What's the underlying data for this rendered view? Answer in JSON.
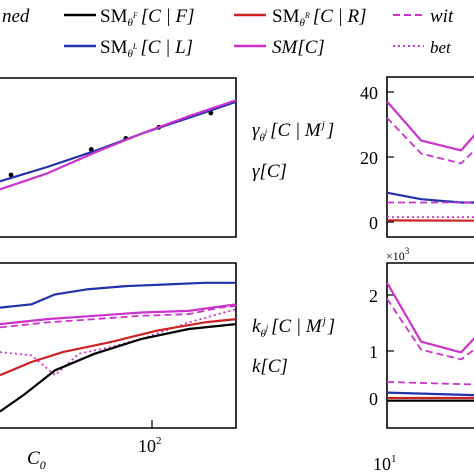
{
  "legend": {
    "items": [
      {
        "id": "tuned",
        "label": "ned",
        "style": "none",
        "color": "#000000"
      },
      {
        "id": "smf",
        "label_main": "SM",
        "label_sub": "θ",
        "label_sup": "F",
        "label_tail": "[C | F]",
        "style": "solid",
        "color": "#000000"
      },
      {
        "id": "smr",
        "label_main": "SM",
        "label_sub": "θ",
        "label_sup": "R",
        "label_tail": "[C | R]",
        "style": "solid",
        "color": "#cc2222"
      },
      {
        "id": "with",
        "label": "wit",
        "style": "dashed",
        "color": "#cc33cc"
      },
      {
        "id": "sml",
        "label_main": "SM",
        "label_sub": "θ",
        "label_sup": "L",
        "label_tail": "[C | L]",
        "style": "solid",
        "color": "#2233aa"
      },
      {
        "id": "smc",
        "label_main": "SM[C]",
        "style": "solid",
        "color": "#cc33cc"
      },
      {
        "id": "bet",
        "label": "bet",
        "style": "dotted",
        "color": "#cc33cc"
      }
    ]
  },
  "middle_labels": {
    "gamma_main": "γ",
    "gamma_sub": "θ",
    "gamma_subsup": "j",
    "gamma_tail": "[C | M",
    "gamma_tail_sup": "j",
    "gamma_close": "]",
    "gamma_plain": "γ[C]",
    "k_main": "k",
    "k_sub": "θ",
    "k_subsup": "j",
    "k_tail": "[C | M",
    "k_tail_sup": "j",
    "k_close": "]",
    "k_plain": "k[C]"
  },
  "right_top": {
    "yticks": [
      "40",
      "20",
      "0"
    ]
  },
  "right_bottom": {
    "multiplier": "×10",
    "multiplier_exp": "3",
    "yticks": [
      "2",
      "1",
      "0"
    ]
  },
  "xaxis": {
    "left_label": "C",
    "left_label_sub": "0",
    "left_tick": "10",
    "left_tick_exp": "2",
    "right_tick": "10",
    "right_tick_exp": "1"
  },
  "colors": {
    "black": "#000000",
    "blue": "#2233aa",
    "red": "#cc2222",
    "magenta": "#cc33cc"
  },
  "chart_data": [
    {
      "id": "left-top",
      "type": "line",
      "note_axes": "visible portion only; x in log10(C0), y in arbitrary units",
      "xlim": [
        1.0,
        2.5
      ],
      "ylim": [
        0,
        10
      ],
      "series": [
        {
          "style": "scatter",
          "color": "#000000",
          "points": [
            [
              1.07,
              3.9
            ],
            [
              1.58,
              5.5
            ],
            [
              1.8,
              6.2
            ],
            [
              2.01,
              6.9
            ],
            [
              2.34,
              7.8
            ]
          ]
        },
        {
          "style": "solid",
          "color": "#2233aa",
          "points": [
            [
              1.0,
              3.5
            ],
            [
              1.3,
              4.4
            ],
            [
              1.6,
              5.4
            ],
            [
              1.9,
              6.5
            ],
            [
              2.2,
              7.5
            ],
            [
              2.5,
              8.5
            ]
          ]
        },
        {
          "style": "solid",
          "color": "#cc33cc",
          "points": [
            [
              1.0,
              3.0
            ],
            [
              1.3,
              4.0
            ],
            [
              1.6,
              5.3
            ],
            [
              1.9,
              6.5
            ],
            [
              2.2,
              7.6
            ],
            [
              2.5,
              8.6
            ]
          ]
        }
      ]
    },
    {
      "id": "left-bottom",
      "type": "line",
      "xlim": [
        1.0,
        2.5
      ],
      "ylim": [
        0,
        10
      ],
      "series": [
        {
          "style": "solid",
          "color": "#2233aa",
          "points": [
            [
              1.0,
              7.3
            ],
            [
              1.2,
              7.5
            ],
            [
              1.35,
              8.1
            ],
            [
              1.55,
              8.4
            ],
            [
              1.8,
              8.6
            ],
            [
              2.05,
              8.7
            ],
            [
              2.3,
              8.8
            ],
            [
              2.5,
              8.8
            ]
          ]
        },
        {
          "style": "solid",
          "color": "#cc33cc",
          "points": [
            [
              1.0,
              6.3
            ],
            [
              1.3,
              6.6
            ],
            [
              1.6,
              6.8
            ],
            [
              1.9,
              7.0
            ],
            [
              2.2,
              7.1
            ],
            [
              2.5,
              7.5
            ]
          ]
        },
        {
          "style": "dashed",
          "color": "#cc33cc",
          "points": [
            [
              1.0,
              6.1
            ],
            [
              1.3,
              6.4
            ],
            [
              1.6,
              6.6
            ],
            [
              1.9,
              6.8
            ],
            [
              2.2,
              6.9
            ],
            [
              2.4,
              7.3
            ],
            [
              2.5,
              7.4
            ]
          ]
        },
        {
          "style": "dotted",
          "color": "#cc33cc",
          "points": [
            [
              1.0,
              4.6
            ],
            [
              1.2,
              4.4
            ],
            [
              1.35,
              3.2
            ],
            [
              1.5,
              4.5
            ],
            [
              1.7,
              4.9
            ],
            [
              1.9,
              5.4
            ],
            [
              2.2,
              6.4
            ],
            [
              2.5,
              7.2
            ]
          ]
        },
        {
          "style": "solid",
          "color": "#cc2222",
          "points": [
            [
              1.0,
              3.2
            ],
            [
              1.2,
              4.0
            ],
            [
              1.4,
              4.6
            ],
            [
              1.7,
              5.2
            ],
            [
              2.0,
              5.9
            ],
            [
              2.3,
              6.4
            ],
            [
              2.5,
              6.6
            ]
          ]
        },
        {
          "style": "solid",
          "color": "#000000",
          "points": [
            [
              1.0,
              1.0
            ],
            [
              1.15,
              2.0
            ],
            [
              1.35,
              3.5
            ],
            [
              1.6,
              4.5
            ],
            [
              1.9,
              5.4
            ],
            [
              2.2,
              6.0
            ],
            [
              2.5,
              6.3
            ]
          ]
        }
      ]
    },
    {
      "id": "right-top",
      "type": "line",
      "xlim": [
        1.0,
        1.4
      ],
      "ylim": [
        0,
        42
      ],
      "series": [
        {
          "style": "solid",
          "color": "#cc33cc",
          "points": [
            [
              1.0,
              37
            ],
            [
              1.12,
              25
            ],
            [
              1.26,
              22
            ],
            [
              1.33,
              29
            ]
          ]
        },
        {
          "style": "dashed",
          "color": "#cc33cc",
          "points": [
            [
              1.0,
              32
            ],
            [
              1.12,
              21
            ],
            [
              1.26,
              18
            ],
            [
              1.33,
              24
            ]
          ]
        },
        {
          "style": "solid",
          "color": "#2233aa",
          "points": [
            [
              1.0,
              9
            ],
            [
              1.12,
              7
            ],
            [
              1.26,
              6
            ],
            [
              1.33,
              6
            ]
          ]
        },
        {
          "style": "dashed",
          "color": "#cc33cc",
          "points": [
            [
              1.0,
              6
            ],
            [
              1.12,
              6
            ],
            [
              1.26,
              6
            ],
            [
              1.33,
              6
            ]
          ]
        },
        {
          "style": "dotted",
          "color": "#cc33cc",
          "points": [
            [
              1.0,
              1.5
            ],
            [
              1.33,
              1.5
            ]
          ]
        },
        {
          "style": "solid",
          "color": "#cc2222",
          "points": [
            [
              1.0,
              0.5
            ],
            [
              1.33,
              0.4
            ]
          ]
        }
      ]
    },
    {
      "id": "right-bottom",
      "type": "line",
      "xlim": [
        1.0,
        1.4
      ],
      "ylim": [
        -0.25,
        2.3
      ],
      "y_multiplier_exp": 3,
      "series": [
        {
          "style": "solid",
          "color": "#cc33cc",
          "points": [
            [
              1.0,
              2.15
            ],
            [
              1.12,
              1.05
            ],
            [
              1.26,
              0.85
            ],
            [
              1.33,
              1.25
            ]
          ]
        },
        {
          "style": "dashed",
          "color": "#cc33cc",
          "points": [
            [
              1.0,
              1.85
            ],
            [
              1.12,
              0.9
            ],
            [
              1.26,
              0.72
            ],
            [
              1.33,
              1.0
            ]
          ]
        },
        {
          "style": "dashed",
          "color": "#cc33cc",
          "points": [
            [
              1.0,
              0.3
            ],
            [
              1.12,
              0.28
            ],
            [
              1.26,
              0.26
            ],
            [
              1.33,
              0.25
            ]
          ]
        },
        {
          "style": "solid",
          "color": "#2233aa",
          "points": [
            [
              1.0,
              0.1
            ],
            [
              1.33,
              0.05
            ]
          ]
        },
        {
          "style": "solid",
          "color": "#cc2222",
          "points": [
            [
              1.0,
              0.0
            ],
            [
              1.33,
              0.0
            ]
          ]
        },
        {
          "style": "solid",
          "color": "#000000",
          "points": [
            [
              1.0,
              -0.05
            ],
            [
              1.33,
              -0.05
            ]
          ]
        }
      ]
    }
  ]
}
